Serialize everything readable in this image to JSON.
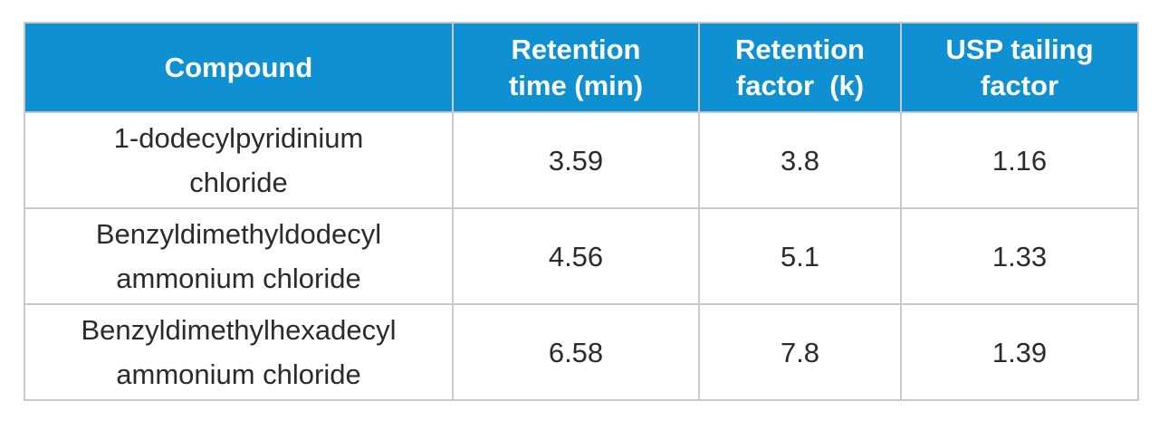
{
  "table": {
    "headers": [
      {
        "line1": "Compound",
        "line2": ""
      },
      {
        "line1": "Retention",
        "line2": "time (min)"
      },
      {
        "line1": "Retention",
        "line2": "factor  (k)"
      },
      {
        "line1": "USP tailing",
        "line2": "factor"
      }
    ],
    "rows": [
      {
        "compound_line1": "1-dodecylpyridinium",
        "compound_line2": "chloride",
        "retention_time": "3.59",
        "retention_factor": "3.8",
        "tailing_factor": "1.16"
      },
      {
        "compound_line1": "Benzyldimethyldodecyl",
        "compound_line2": "ammonium chloride",
        "retention_time": "4.56",
        "retention_factor": "5.1",
        "tailing_factor": "1.33"
      },
      {
        "compound_line1": "Benzyldimethylhexadecyl",
        "compound_line2": "ammonium chloride",
        "retention_time": "6.58",
        "retention_factor": "7.8",
        "tailing_factor": "1.39"
      }
    ],
    "colors": {
      "header_background": "#0e90d2",
      "header_text": "#ffffff",
      "border": "#c9c9c9",
      "body_text": "#2b2b2b"
    }
  }
}
